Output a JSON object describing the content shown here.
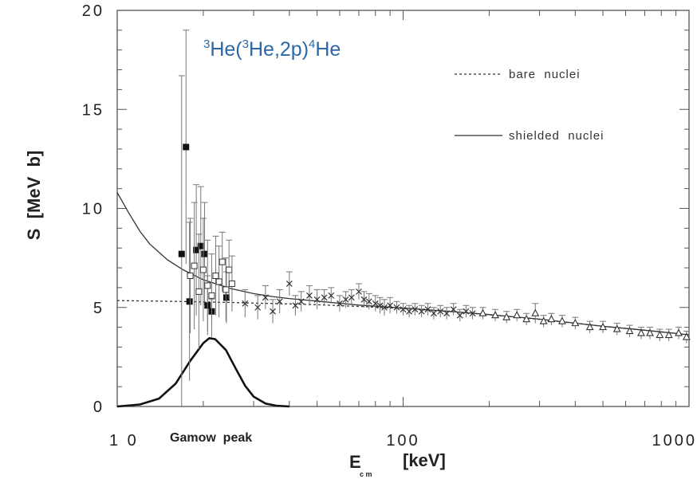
{
  "chart_data": {
    "type": "scatter",
    "title_parts": {
      "a_sup": "3",
      "a": "He(",
      "b_sup": "3",
      "b": "He,2p)",
      "c_sup": "4",
      "c": "He"
    },
    "ylabel": "S  [MeV  b]",
    "xlabel_main": "E",
    "xlabel_sub": "c m",
    "xlabel_unit": "[keV]",
    "x_scale": "log",
    "xlim": [
      10,
      1000
    ],
    "ylim": [
      0,
      20
    ],
    "x_ticks": [
      {
        "value": 10,
        "label": "1 0"
      },
      {
        "value": 100,
        "label": "100"
      },
      {
        "value": 1000,
        "label": "1000"
      }
    ],
    "y_ticks": [
      {
        "value": 0,
        "label": "0"
      },
      {
        "value": 5,
        "label": "5"
      },
      {
        "value": 10,
        "label": "10"
      },
      {
        "value": 15,
        "label": "15"
      },
      {
        "value": 20,
        "label": "20"
      }
    ],
    "annotation": "Gamow  peak",
    "legend_position": "top-right",
    "legend": [
      {
        "label": "bare  nuclei",
        "style": "dashed"
      },
      {
        "label": "shielded  nuclei",
        "style": "solid"
      }
    ],
    "curves": {
      "bare_nuclei": {
        "x": [
          10,
          12,
          15,
          20,
          25,
          30,
          40,
          50,
          70,
          100,
          150,
          200,
          300,
          500,
          700,
          1000
        ],
        "y": [
          5.35,
          5.33,
          5.31,
          5.28,
          5.25,
          5.22,
          5.18,
          5.14,
          5.05,
          4.95,
          4.78,
          4.63,
          4.4,
          4.05,
          3.85,
          3.62
        ]
      },
      "shielded_nuclei": {
        "x": [
          10,
          11,
          12,
          13,
          15,
          17,
          20,
          25,
          30,
          35,
          40,
          50,
          70,
          100,
          150,
          200,
          300,
          500,
          700,
          1000
        ],
        "y": [
          10.8,
          9.75,
          8.85,
          8.2,
          7.4,
          6.9,
          6.4,
          5.95,
          5.7,
          5.55,
          5.45,
          5.32,
          5.12,
          4.97,
          4.79,
          4.64,
          4.41,
          4.05,
          3.85,
          3.62
        ]
      },
      "gamow_peak": {
        "x": [
          10,
          12,
          14,
          16,
          18,
          20,
          21,
          22,
          24,
          26,
          28,
          30,
          33,
          36,
          40
        ],
        "y": [
          0.0,
          0.1,
          0.4,
          1.15,
          2.3,
          3.2,
          3.45,
          3.4,
          2.85,
          1.9,
          1.05,
          0.5,
          0.15,
          0.04,
          0.0
        ]
      }
    },
    "series": [
      {
        "marker": "filled-square",
        "x": [
          16.8,
          17.4,
          17.9,
          18.9,
          19.6,
          20.2,
          20.7,
          21.4,
          24.1
        ],
        "y": [
          7.7,
          13.1,
          5.3,
          7.9,
          8.1,
          7.7,
          5.1,
          4.8,
          5.5
        ],
        "err": [
          9.0,
          5.9,
          4.0,
          3.3,
          3.0,
          2.6,
          1.5,
          0.6,
          1.3
        ]
      },
      {
        "marker": "open-square",
        "x": [
          18.0,
          18.6,
          19.3,
          20.0,
          20.7,
          21.4,
          22.1,
          22.7,
          23.3,
          24.0,
          24.6,
          25.2
        ],
        "y": [
          6.6,
          7.1,
          5.8,
          6.9,
          6.1,
          5.6,
          6.6,
          6.3,
          7.3,
          5.9,
          6.9,
          6.2
        ],
        "err": [
          2.9,
          3.2,
          2.9,
          2.6,
          2.3,
          2.1,
          2.0,
          1.8,
          1.5,
          1.6,
          1.5,
          1.4
        ]
      },
      {
        "marker": "cross",
        "x": [
          28,
          31,
          33,
          35,
          37,
          40,
          42,
          44,
          47,
          50,
          53,
          56,
          60,
          63,
          66,
          70,
          73,
          76,
          80,
          83,
          86,
          90,
          95,
          100,
          105,
          110,
          116,
          122,
          128,
          135,
          142,
          150,
          158,
          166,
          175
        ],
        "y": [
          5.2,
          5.0,
          5.5,
          4.8,
          5.3,
          6.2,
          5.1,
          5.3,
          5.6,
          5.4,
          5.5,
          5.6,
          5.2,
          5.4,
          5.5,
          5.8,
          5.4,
          5.3,
          5.2,
          5.1,
          5.0,
          5.1,
          5.0,
          4.9,
          4.8,
          4.9,
          4.8,
          4.9,
          4.7,
          4.8,
          4.7,
          4.9,
          4.6,
          4.8,
          4.7
        ],
        "err": [
          0.7,
          0.6,
          0.6,
          0.6,
          0.6,
          0.6,
          0.5,
          0.5,
          0.5,
          0.5,
          0.4,
          0.4,
          0.4,
          0.4,
          0.4,
          0.4,
          0.4,
          0.4,
          0.4,
          0.4,
          0.4,
          0.4,
          0.3,
          0.3,
          0.3,
          0.3,
          0.3,
          0.3,
          0.3,
          0.3,
          0.3,
          0.3,
          0.3,
          0.3,
          0.3
        ]
      },
      {
        "marker": "open-triangle",
        "x": [
          190,
          210,
          230,
          250,
          270,
          290,
          310,
          330,
          360,
          400,
          450,
          500,
          560,
          620,
          680,
          730,
          790,
          850,
          920,
          980
        ],
        "y": [
          4.7,
          4.6,
          4.5,
          4.6,
          4.4,
          4.7,
          4.3,
          4.4,
          4.3,
          4.2,
          4.0,
          4.0,
          3.9,
          3.8,
          3.7,
          3.7,
          3.6,
          3.6,
          3.7,
          3.5
        ],
        "err": [
          0.3,
          0.3,
          0.3,
          0.3,
          0.3,
          0.5,
          0.3,
          0.3,
          0.3,
          0.3,
          0.3,
          0.3,
          0.3,
          0.3,
          0.3,
          0.3,
          0.3,
          0.3,
          0.3,
          0.3
        ]
      }
    ]
  }
}
